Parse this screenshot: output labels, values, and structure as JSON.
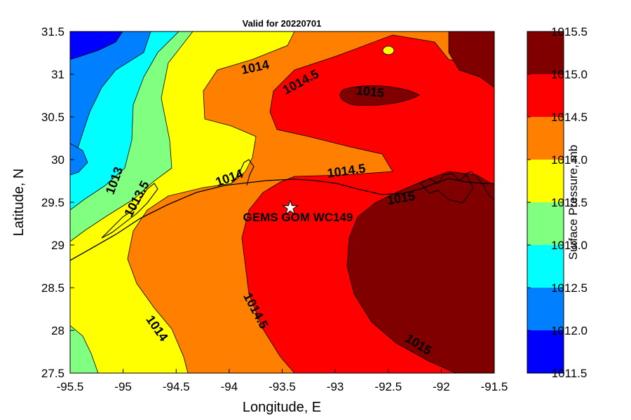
{
  "chart_data": {
    "type": "contour-map",
    "title": "Valid for 20220701",
    "xlabel": "Longitude, E",
    "ylabel": "Latitude, N",
    "xlim": [
      -95.5,
      -91.5
    ],
    "ylim": [
      27.5,
      31.5
    ],
    "xticks": [
      "-95.5",
      "-95",
      "-94.5",
      "-94",
      "-93.5",
      "-93",
      "-92.5",
      "-92",
      "-91.5"
    ],
    "yticks": [
      "27.5",
      "28",
      "28.5",
      "29",
      "29.5",
      "30",
      "30.5",
      "31",
      "31.5"
    ],
    "colorbar": {
      "label": "Surface Pressure, mb",
      "ticks": [
        "1011.5",
        "1012.0",
        "1012.5",
        "1013.0",
        "1013.5",
        "1014.0",
        "1014.5",
        "1015.0",
        "1015.5"
      ],
      "levels": [
        {
          "range": [
            1011.5,
            1012.0
          ],
          "color": "#0000ff"
        },
        {
          "range": [
            1012.0,
            1012.5
          ],
          "color": "#0080ff"
        },
        {
          "range": [
            1012.5,
            1013.0
          ],
          "color": "#00ffff"
        },
        {
          "range": [
            1013.0,
            1013.5
          ],
          "color": "#80ff80"
        },
        {
          "range": [
            1013.5,
            1014.0
          ],
          "color": "#ffff00"
        },
        {
          "range": [
            1014.0,
            1014.5
          ],
          "color": "#ff8000"
        },
        {
          "range": [
            1014.5,
            1015.0
          ],
          "color": "#ff0000"
        },
        {
          "range": [
            1015.0,
            1015.5
          ],
          "color": "#800000"
        }
      ]
    },
    "contour_labels": [
      {
        "text": "1014",
        "lon": -93.85,
        "lat": 31.05
      },
      {
        "text": "1014.5",
        "lon": -93.2,
        "lat": 30.95
      },
      {
        "text": "1015",
        "lon": -92.8,
        "lat": 30.8
      },
      {
        "text": "1013",
        "lon": -95.05,
        "lat": 29.7
      },
      {
        "text": "1013.5",
        "lon": -94.9,
        "lat": 29.55
      },
      {
        "text": "1014",
        "lon": -94.05,
        "lat": 29.8
      },
      {
        "text": "1014.5",
        "lon": -93.0,
        "lat": 29.85
      },
      {
        "text": "1015",
        "lon": -92.5,
        "lat": 29.55
      },
      {
        "text": "1014.5",
        "lon": -93.7,
        "lat": 28.25
      },
      {
        "text": "1014",
        "lon": -94.8,
        "lat": 27.95
      },
      {
        "text": "1015",
        "lon": -92.3,
        "lat": 27.85
      }
    ],
    "station": {
      "name": "GEMS GOM WC149",
      "lon": -93.4,
      "lat": 29.45
    }
  }
}
